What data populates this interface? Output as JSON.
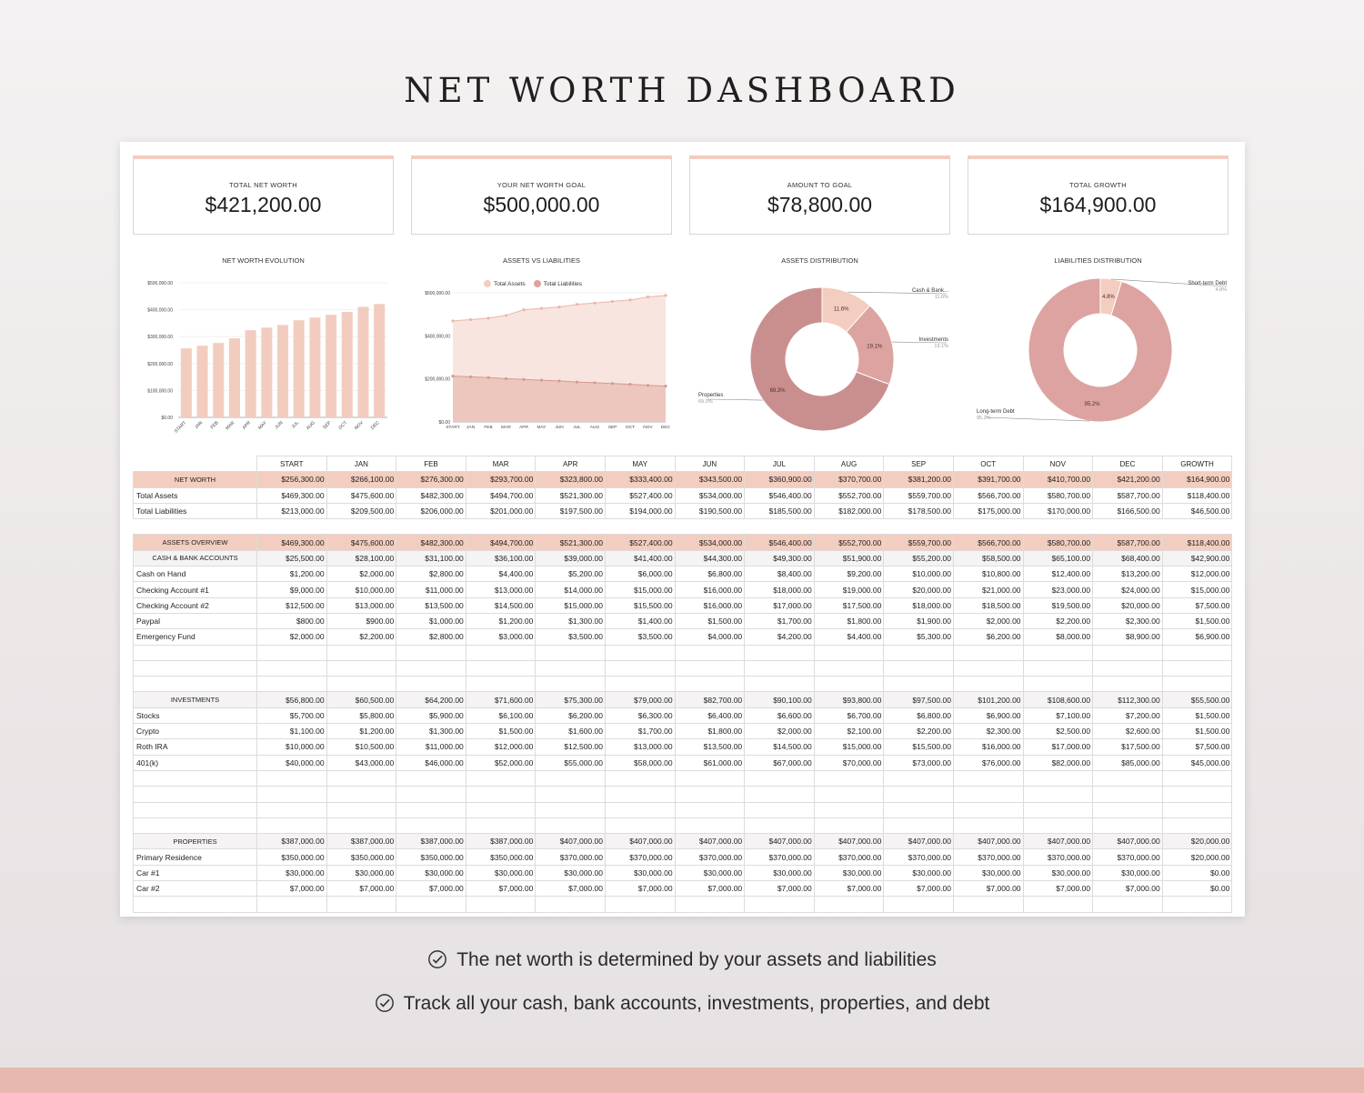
{
  "title": "NET WORTH DASHBOARD",
  "kpis": [
    {
      "label": "TOTAL NET WORTH",
      "value": "$421,200.00"
    },
    {
      "label": "YOUR NET WORTH GOAL",
      "value": "$500,000.00"
    },
    {
      "label": "AMOUNT TO GOAL",
      "value": "$78,800.00"
    },
    {
      "label": "TOTAL GROWTH",
      "value": "$164,900.00"
    }
  ],
  "colors": {
    "accent": "#f3cdbf",
    "bar": "#f2cdbf",
    "assets_fill": "#f8e2db",
    "liabilities_fill": "#e8bcb3",
    "donut_dark": "#c98f8e",
    "donut_mid": "#dca3a0",
    "donut_light": "#f3cdbf"
  },
  "chart_data": [
    {
      "type": "bar",
      "title": "NET WORTH EVOLUTION",
      "categories": [
        "START",
        "JAN",
        "FEB",
        "MAR",
        "APR",
        "MAY",
        "JUN",
        "JUL",
        "AUG",
        "SEP",
        "OCT",
        "NOV",
        "DEC"
      ],
      "values": [
        256300,
        266100,
        276300,
        293700,
        323800,
        333400,
        343500,
        360900,
        370700,
        381200,
        391700,
        410700,
        421200
      ],
      "yticks": [
        "$500,000.00",
        "$400,000.00",
        "$300,000.00",
        "$200,000.00",
        "$100,000.00",
        "$0.00"
      ],
      "ylim": [
        0,
        500000
      ]
    },
    {
      "type": "area",
      "title": "ASSETS VS LIABILITIES",
      "categories": [
        "START",
        "JAN",
        "FEB",
        "MAR",
        "APR",
        "MAY",
        "JUN",
        "JUL",
        "AUG",
        "SEP",
        "OCT",
        "NOV",
        "DEC"
      ],
      "series": [
        {
          "name": "Total Assets",
          "values": [
            469300,
            475600,
            482300,
            494700,
            521300,
            527400,
            534000,
            546400,
            552700,
            559700,
            566700,
            580700,
            587700
          ]
        },
        {
          "name": "Total Liabilities",
          "values": [
            213000,
            209500,
            206000,
            201000,
            197500,
            194000,
            190500,
            185500,
            182000,
            178500,
            175000,
            170000,
            166500
          ]
        }
      ],
      "yticks": [
        "$600,000.00",
        "$400,000.00",
        "$200,000.00",
        "$0.00"
      ],
      "ylim": [
        0,
        600000
      ]
    },
    {
      "type": "pie",
      "title": "ASSETS DISTRIBUTION",
      "slices": [
        {
          "label": "Cash & Bank...",
          "value": 11.6,
          "pct": "11.6%"
        },
        {
          "label": "Investments",
          "value": 19.1,
          "pct": "19.1%"
        },
        {
          "label": "Properties",
          "value": 69.3,
          "pct": "69.3%"
        }
      ]
    },
    {
      "type": "pie",
      "title": "LIABILITIES DISTRIBUTION",
      "slices": [
        {
          "label": "Short-term Debt",
          "value": 4.8,
          "pct": "4.8%"
        },
        {
          "label": "Long-term Debt",
          "value": 95.2,
          "pct": "95.2%"
        }
      ]
    }
  ],
  "table": {
    "headers": [
      "",
      "START",
      "JAN",
      "FEB",
      "MAR",
      "APR",
      "MAY",
      "JUN",
      "JUL",
      "AUG",
      "SEP",
      "OCT",
      "NOV",
      "DEC",
      "GROWTH"
    ],
    "rows": [
      {
        "kind": "net",
        "cells": [
          "NET WORTH",
          "$256,300.00",
          "$266,100.00",
          "$276,300.00",
          "$293,700.00",
          "$323,800.00",
          "$333,400.00",
          "$343,500.00",
          "$360,900.00",
          "$370,700.00",
          "$381,200.00",
          "$391,700.00",
          "$410,700.00",
          "$421,200.00",
          "$164,900.00"
        ]
      },
      {
        "kind": "row",
        "cells": [
          "Total Assets",
          "$469,300.00",
          "$475,600.00",
          "$482,300.00",
          "$494,700.00",
          "$521,300.00",
          "$527,400.00",
          "$534,000.00",
          "$546,400.00",
          "$552,700.00",
          "$559,700.00",
          "$566,700.00",
          "$580,700.00",
          "$587,700.00",
          "$118,400.00"
        ]
      },
      {
        "kind": "row",
        "cells": [
          "Total Liabilities",
          "$213,000.00",
          "$209,500.00",
          "$206,000.00",
          "$201,000.00",
          "$197,500.00",
          "$194,000.00",
          "$190,500.00",
          "$185,500.00",
          "$182,000.00",
          "$178,500.00",
          "$175,000.00",
          "$170,000.00",
          "$166,500.00",
          "$46,500.00"
        ]
      },
      {
        "kind": "blank",
        "cells": [
          "",
          "",
          "",
          "",
          "",
          "",
          "",
          "",
          "",
          "",
          "",
          "",
          "",
          "",
          ""
        ]
      },
      {
        "kind": "sec",
        "cells": [
          "ASSETS OVERVIEW",
          "$469,300.00",
          "$475,600.00",
          "$482,300.00",
          "$494,700.00",
          "$521,300.00",
          "$527,400.00",
          "$534,000.00",
          "$546,400.00",
          "$552,700.00",
          "$559,700.00",
          "$566,700.00",
          "$580,700.00",
          "$587,700.00",
          "$118,400.00"
        ]
      },
      {
        "kind": "sub",
        "cells": [
          "CASH & BANK ACCOUNTS",
          "$25,500.00",
          "$28,100.00",
          "$31,100.00",
          "$36,100.00",
          "$39,000.00",
          "$41,400.00",
          "$44,300.00",
          "$49,300.00",
          "$51,900.00",
          "$55,200.00",
          "$58,500.00",
          "$65,100.00",
          "$68,400.00",
          "$42,900.00"
        ]
      },
      {
        "kind": "row",
        "cells": [
          "Cash on Hand",
          "$1,200.00",
          "$2,000.00",
          "$2,800.00",
          "$4,400.00",
          "$5,200.00",
          "$6,000.00",
          "$6,800.00",
          "$8,400.00",
          "$9,200.00",
          "$10,000.00",
          "$10,800.00",
          "$12,400.00",
          "$13,200.00",
          "$12,000.00"
        ]
      },
      {
        "kind": "row",
        "cells": [
          "Checking Account #1",
          "$9,000.00",
          "$10,000.00",
          "$11,000.00",
          "$13,000.00",
          "$14,000.00",
          "$15,000.00",
          "$16,000.00",
          "$18,000.00",
          "$19,000.00",
          "$20,000.00",
          "$21,000.00",
          "$23,000.00",
          "$24,000.00",
          "$15,000.00"
        ]
      },
      {
        "kind": "row",
        "cells": [
          "Checking Account #2",
          "$12,500.00",
          "$13,000.00",
          "$13,500.00",
          "$14,500.00",
          "$15,000.00",
          "$15,500.00",
          "$16,000.00",
          "$17,000.00",
          "$17,500.00",
          "$18,000.00",
          "$18,500.00",
          "$19,500.00",
          "$20,000.00",
          "$7,500.00"
        ]
      },
      {
        "kind": "row",
        "cells": [
          "Paypal",
          "$800.00",
          "$900.00",
          "$1,000.00",
          "$1,200.00",
          "$1,300.00",
          "$1,400.00",
          "$1,500.00",
          "$1,700.00",
          "$1,800.00",
          "$1,900.00",
          "$2,000.00",
          "$2,200.00",
          "$2,300.00",
          "$1,500.00"
        ]
      },
      {
        "kind": "row",
        "cells": [
          "Emergency Fund",
          "$2,000.00",
          "$2,200.00",
          "$2,800.00",
          "$3,000.00",
          "$3,500.00",
          "$3,500.00",
          "$4,000.00",
          "$4,200.00",
          "$4,400.00",
          "$5,300.00",
          "$6,200.00",
          "$8,000.00",
          "$8,900.00",
          "$6,900.00"
        ]
      },
      {
        "kind": "row",
        "cells": [
          "",
          "",
          "",
          "",
          "",
          "",
          "",
          "",
          "",
          "",
          "",
          "",
          "",
          "",
          ""
        ]
      },
      {
        "kind": "row",
        "cells": [
          "",
          "",
          "",
          "",
          "",
          "",
          "",
          "",
          "",
          "",
          "",
          "",
          "",
          "",
          ""
        ]
      },
      {
        "kind": "row",
        "cells": [
          "",
          "",
          "",
          "",
          "",
          "",
          "",
          "",
          "",
          "",
          "",
          "",
          "",
          "",
          ""
        ]
      },
      {
        "kind": "sub",
        "cells": [
          "INVESTMENTS",
          "$56,800.00",
          "$60,500.00",
          "$64,200.00",
          "$71,600.00",
          "$75,300.00",
          "$79,000.00",
          "$82,700.00",
          "$90,100.00",
          "$93,800.00",
          "$97,500.00",
          "$101,200.00",
          "$108,600.00",
          "$112,300.00",
          "$55,500.00"
        ]
      },
      {
        "kind": "row",
        "cells": [
          "Stocks",
          "$5,700.00",
          "$5,800.00",
          "$5,900.00",
          "$6,100.00",
          "$6,200.00",
          "$6,300.00",
          "$6,400.00",
          "$6,600.00",
          "$6,700.00",
          "$6,800.00",
          "$6,900.00",
          "$7,100.00",
          "$7,200.00",
          "$1,500.00"
        ]
      },
      {
        "kind": "row",
        "cells": [
          "Crypto",
          "$1,100.00",
          "$1,200.00",
          "$1,300.00",
          "$1,500.00",
          "$1,600.00",
          "$1,700.00",
          "$1,800.00",
          "$2,000.00",
          "$2,100.00",
          "$2,200.00",
          "$2,300.00",
          "$2,500.00",
          "$2,600.00",
          "$1,500.00"
        ]
      },
      {
        "kind": "row",
        "cells": [
          "Roth IRA",
          "$10,000.00",
          "$10,500.00",
          "$11,000.00",
          "$12,000.00",
          "$12,500.00",
          "$13,000.00",
          "$13,500.00",
          "$14,500.00",
          "$15,000.00",
          "$15,500.00",
          "$16,000.00",
          "$17,000.00",
          "$17,500.00",
          "$7,500.00"
        ]
      },
      {
        "kind": "row",
        "cells": [
          "401(k)",
          "$40,000.00",
          "$43,000.00",
          "$46,000.00",
          "$52,000.00",
          "$55,000.00",
          "$58,000.00",
          "$61,000.00",
          "$67,000.00",
          "$70,000.00",
          "$73,000.00",
          "$76,000.00",
          "$82,000.00",
          "$85,000.00",
          "$45,000.00"
        ]
      },
      {
        "kind": "row",
        "cells": [
          "",
          "",
          "",
          "",
          "",
          "",
          "",
          "",
          "",
          "",
          "",
          "",
          "",
          "",
          ""
        ]
      },
      {
        "kind": "row",
        "cells": [
          "",
          "",
          "",
          "",
          "",
          "",
          "",
          "",
          "",
          "",
          "",
          "",
          "",
          "",
          ""
        ]
      },
      {
        "kind": "row",
        "cells": [
          "",
          "",
          "",
          "",
          "",
          "",
          "",
          "",
          "",
          "",
          "",
          "",
          "",
          "",
          ""
        ]
      },
      {
        "kind": "row",
        "cells": [
          "",
          "",
          "",
          "",
          "",
          "",
          "",
          "",
          "",
          "",
          "",
          "",
          "",
          "",
          ""
        ]
      },
      {
        "kind": "sub",
        "cells": [
          "PROPERTIES",
          "$387,000.00",
          "$387,000.00",
          "$387,000.00",
          "$387,000.00",
          "$407,000.00",
          "$407,000.00",
          "$407,000.00",
          "$407,000.00",
          "$407,000.00",
          "$407,000.00",
          "$407,000.00",
          "$407,000.00",
          "$407,000.00",
          "$20,000.00"
        ]
      },
      {
        "kind": "row",
        "cells": [
          "Primary Residence",
          "$350,000.00",
          "$350,000.00",
          "$350,000.00",
          "$350,000.00",
          "$370,000.00",
          "$370,000.00",
          "$370,000.00",
          "$370,000.00",
          "$370,000.00",
          "$370,000.00",
          "$370,000.00",
          "$370,000.00",
          "$370,000.00",
          "$20,000.00"
        ]
      },
      {
        "kind": "row",
        "cells": [
          "Car #1",
          "$30,000.00",
          "$30,000.00",
          "$30,000.00",
          "$30,000.00",
          "$30,000.00",
          "$30,000.00",
          "$30,000.00",
          "$30,000.00",
          "$30,000.00",
          "$30,000.00",
          "$30,000.00",
          "$30,000.00",
          "$30,000.00",
          "$0.00"
        ]
      },
      {
        "kind": "row",
        "cells": [
          "Car #2",
          "$7,000.00",
          "$7,000.00",
          "$7,000.00",
          "$7,000.00",
          "$7,000.00",
          "$7,000.00",
          "$7,000.00",
          "$7,000.00",
          "$7,000.00",
          "$7,000.00",
          "$7,000.00",
          "$7,000.00",
          "$7,000.00",
          "$0.00"
        ]
      },
      {
        "kind": "row",
        "cells": [
          "",
          "",
          "",
          "",
          "",
          "",
          "",
          "",
          "",
          "",
          "",
          "",
          "",
          "",
          ""
        ]
      }
    ]
  },
  "features": [
    {
      "icon": "check-circle-icon",
      "text": "The net worth is determined by your assets and liabilities"
    },
    {
      "icon": "check-circle-icon",
      "text": "Track all your cash, bank accounts, investments, properties, and debt"
    }
  ]
}
